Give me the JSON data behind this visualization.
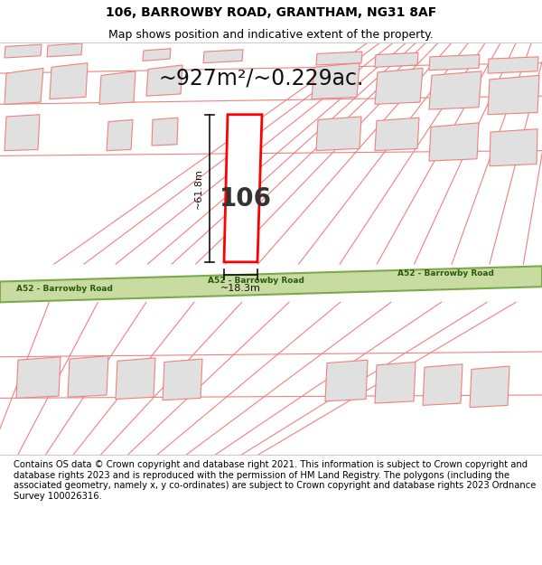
{
  "title": "106, BARROWBY ROAD, GRANTHAM, NG31 8AF",
  "subtitle": "Map shows position and indicative extent of the property.",
  "area_text": "~927m²/~0.229ac.",
  "dimension_h": "~61.8m",
  "dimension_w": "~18.3m",
  "label_106": "106",
  "road_label": "A52 - Barrowby Road",
  "footer": "Contains OS data © Crown copyright and database right 2021. This information is subject to Crown copyright and database rights 2023 and is reproduced with the permission of HM Land Registry. The polygons (including the associated geometry, namely x, y co-ordinates) are subject to Crown copyright and database rights 2023 Ordnance Survey 100026316.",
  "bg_color": "#ffffff",
  "map_bg": "#ffffff",
  "road_fill": "#c8dba0",
  "road_stroke": "#7aaa4a",
  "plot_outline": "#ff0000",
  "neighbor_fill": "#e0e0e0",
  "neighbor_stroke": "#f08080",
  "dim_line_color": "#111111",
  "title_fontsize": 10,
  "subtitle_fontsize": 9,
  "area_fontsize": 17,
  "label_fontsize": 20,
  "dim_fontsize": 8,
  "road_fontsize": 6.5,
  "footer_fontsize": 7.2
}
